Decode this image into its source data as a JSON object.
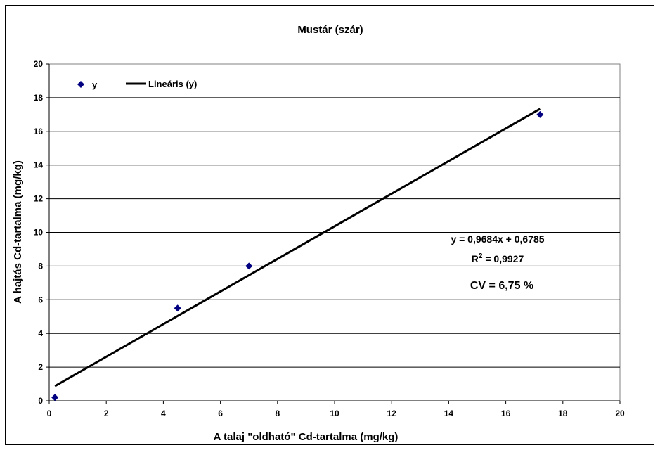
{
  "chart_data": {
    "type": "scatter",
    "title": "Mustár (szár)",
    "xlabel": "A talaj \"oldható\" Cd-tartalma (mg/kg)",
    "ylabel": "A hajtás Cd-tartalma (mg/kg)",
    "xlim": [
      0,
      20
    ],
    "ylim": [
      0,
      20
    ],
    "xticks": [
      0,
      2,
      4,
      6,
      8,
      10,
      12,
      14,
      16,
      18,
      20
    ],
    "yticks": [
      0,
      2,
      4,
      6,
      8,
      10,
      12,
      14,
      16,
      18,
      20
    ],
    "grid": "horizontal",
    "legend_position": "top-left",
    "series": [
      {
        "name": "y",
        "kind": "scatter",
        "marker": "diamond",
        "color": "#000080",
        "x": [
          0.2,
          4.5,
          7.0,
          17.2
        ],
        "y": [
          0.2,
          5.5,
          8.0,
          17.0
        ]
      },
      {
        "name": "Lineáris (y)",
        "kind": "trendline",
        "color": "#000000",
        "slope": 0.9684,
        "intercept": 0.6785,
        "x_range": [
          0.2,
          17.2
        ]
      }
    ],
    "annotations": {
      "equation": "y = 0,9684x + 0,6785",
      "r2_label": "R",
      "r2_sup": "2",
      "r2_value": " = 0,9927",
      "cv": "CV = 6,75 %"
    }
  }
}
